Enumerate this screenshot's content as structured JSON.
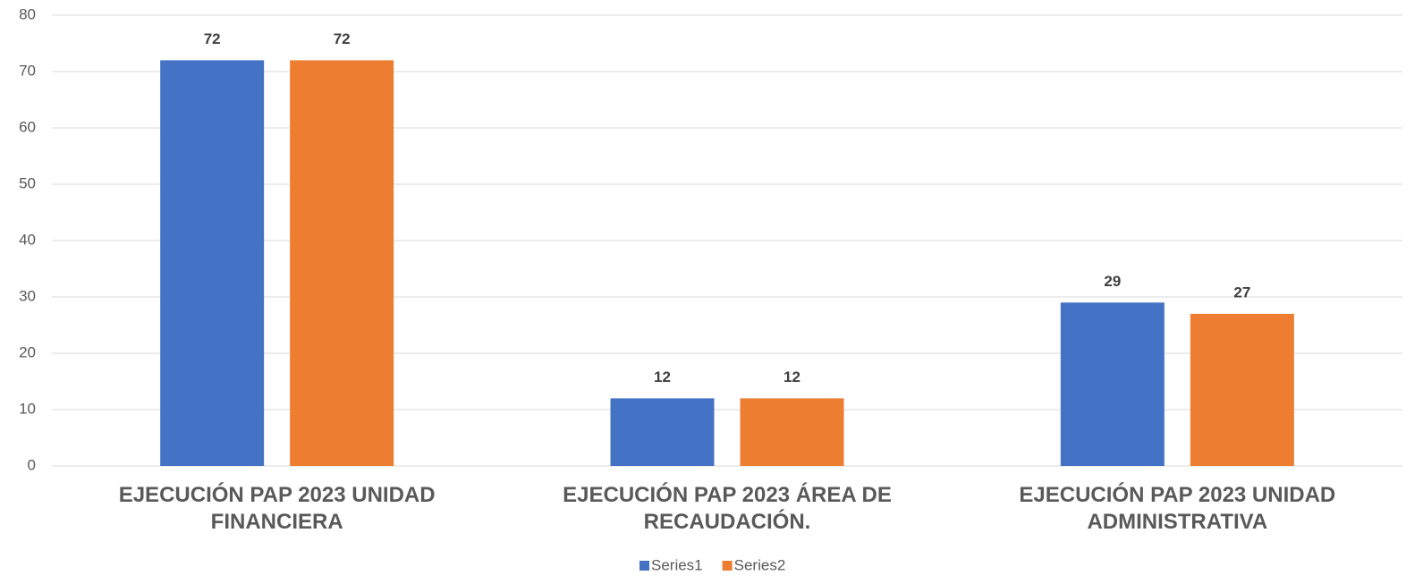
{
  "chart_data": {
    "type": "bar",
    "categories": [
      "EJECUCIÓN PAP 2023 UNIDAD FINANCIERA",
      "EJECUCIÓN PAP 2023 ÁREA DE RECAUDACIÓN.",
      "EJECUCIÓN PAP 2023 UNIDAD ADMINISTRATIVA"
    ],
    "series": [
      {
        "name": "Series1",
        "color": "#4472c4",
        "values": [
          72,
          12,
          29
        ]
      },
      {
        "name": "Series2",
        "color": "#ed7d31",
        "values": [
          72,
          12,
          27
        ]
      }
    ],
    "ylim": [
      0,
      80
    ],
    "yticks": [
      0,
      10,
      20,
      30,
      40,
      50,
      60,
      70,
      80
    ],
    "grid": true,
    "legend": "bottom"
  }
}
